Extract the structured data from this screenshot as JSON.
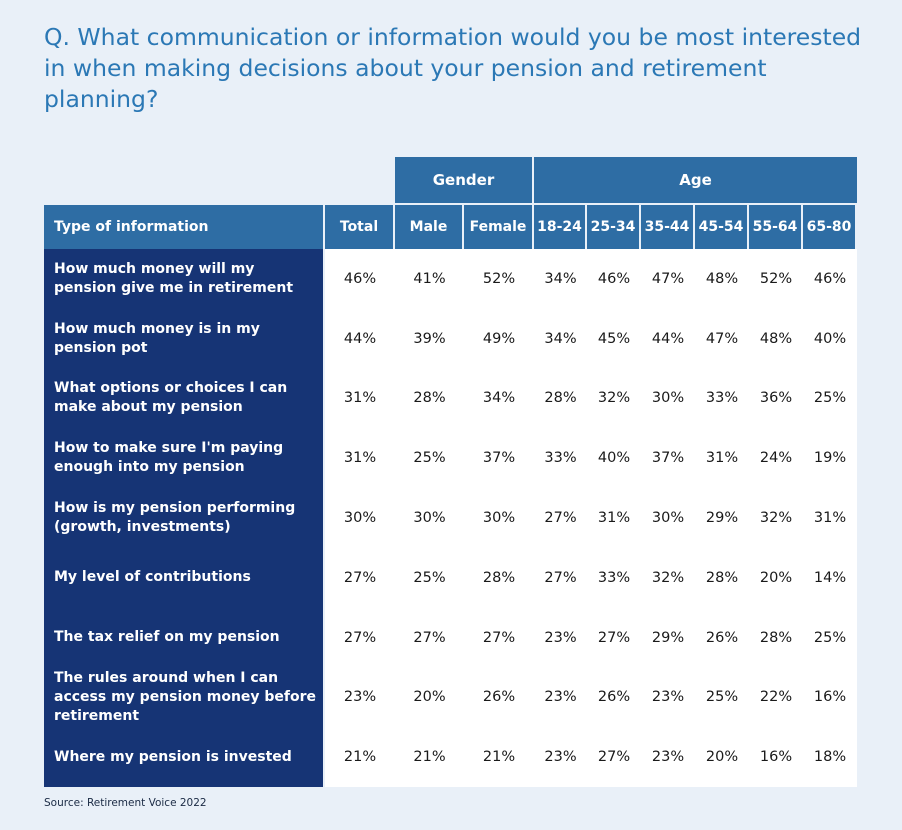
{
  "question": "Q. What communication or information would you be most interested in when making decisions about your pension and retirement planning?",
  "chart_data": {
    "type": "table",
    "title": "Q. What communication or information would you be most interested in when making decisions about your pension and retirement planning?",
    "group_headers": [
      {
        "label": "Gender",
        "columns": [
          "Male",
          "Female"
        ]
      },
      {
        "label": "Age",
        "columns": [
          "18-24",
          "25-34",
          "35-44",
          "45-54",
          "55-64",
          "65-80"
        ]
      }
    ],
    "columns": [
      "Type of information",
      "Total",
      "Male",
      "Female",
      "18-24",
      "25-34",
      "35-44",
      "45-54",
      "55-64",
      "65-80"
    ],
    "rows": [
      {
        "label": "How much money will my pension give me in retirement",
        "values": [
          "46%",
          "41%",
          "52%",
          "34%",
          "46%",
          "47%",
          "48%",
          "52%",
          "46%"
        ]
      },
      {
        "label": "How much money is in my pension pot",
        "values": [
          "44%",
          "39%",
          "49%",
          "34%",
          "45%",
          "44%",
          "47%",
          "48%",
          "40%"
        ]
      },
      {
        "label": "What options or choices I can make about my pension",
        "values": [
          "31%",
          "28%",
          "34%",
          "28%",
          "32%",
          "30%",
          "33%",
          "36%",
          "25%"
        ]
      },
      {
        "label": "How to make sure I'm paying enough into my pension",
        "values": [
          "31%",
          "25%",
          "37%",
          "33%",
          "40%",
          "37%",
          "31%",
          "24%",
          "19%"
        ]
      },
      {
        "label": "How is my pension performing (growth, investments)",
        "values": [
          "30%",
          "30%",
          "30%",
          "27%",
          "31%",
          "30%",
          "29%",
          "32%",
          "31%"
        ]
      },
      {
        "label": "My level of contributions",
        "values": [
          "27%",
          "25%",
          "28%",
          "27%",
          "33%",
          "32%",
          "28%",
          "20%",
          "14%"
        ]
      },
      {
        "label": "The tax relief on my pension",
        "values": [
          "27%",
          "27%",
          "27%",
          "23%",
          "27%",
          "29%",
          "26%",
          "28%",
          "25%"
        ]
      },
      {
        "label": "The rules around when I can access my pension money before retirement",
        "values": [
          "23%",
          "20%",
          "26%",
          "23%",
          "26%",
          "23%",
          "25%",
          "22%",
          "16%"
        ]
      },
      {
        "label": "Where my pension is invested",
        "values": [
          "21%",
          "21%",
          "21%",
          "23%",
          "27%",
          "23%",
          "20%",
          "16%",
          "18%"
        ]
      }
    ]
  },
  "source": "Source: Retirement Voice 2022",
  "colors": {
    "background": "#e9f0f8",
    "header_blue": "#2e6da4",
    "row_label_navy": "#163475",
    "question_text": "#2b78b5"
  }
}
